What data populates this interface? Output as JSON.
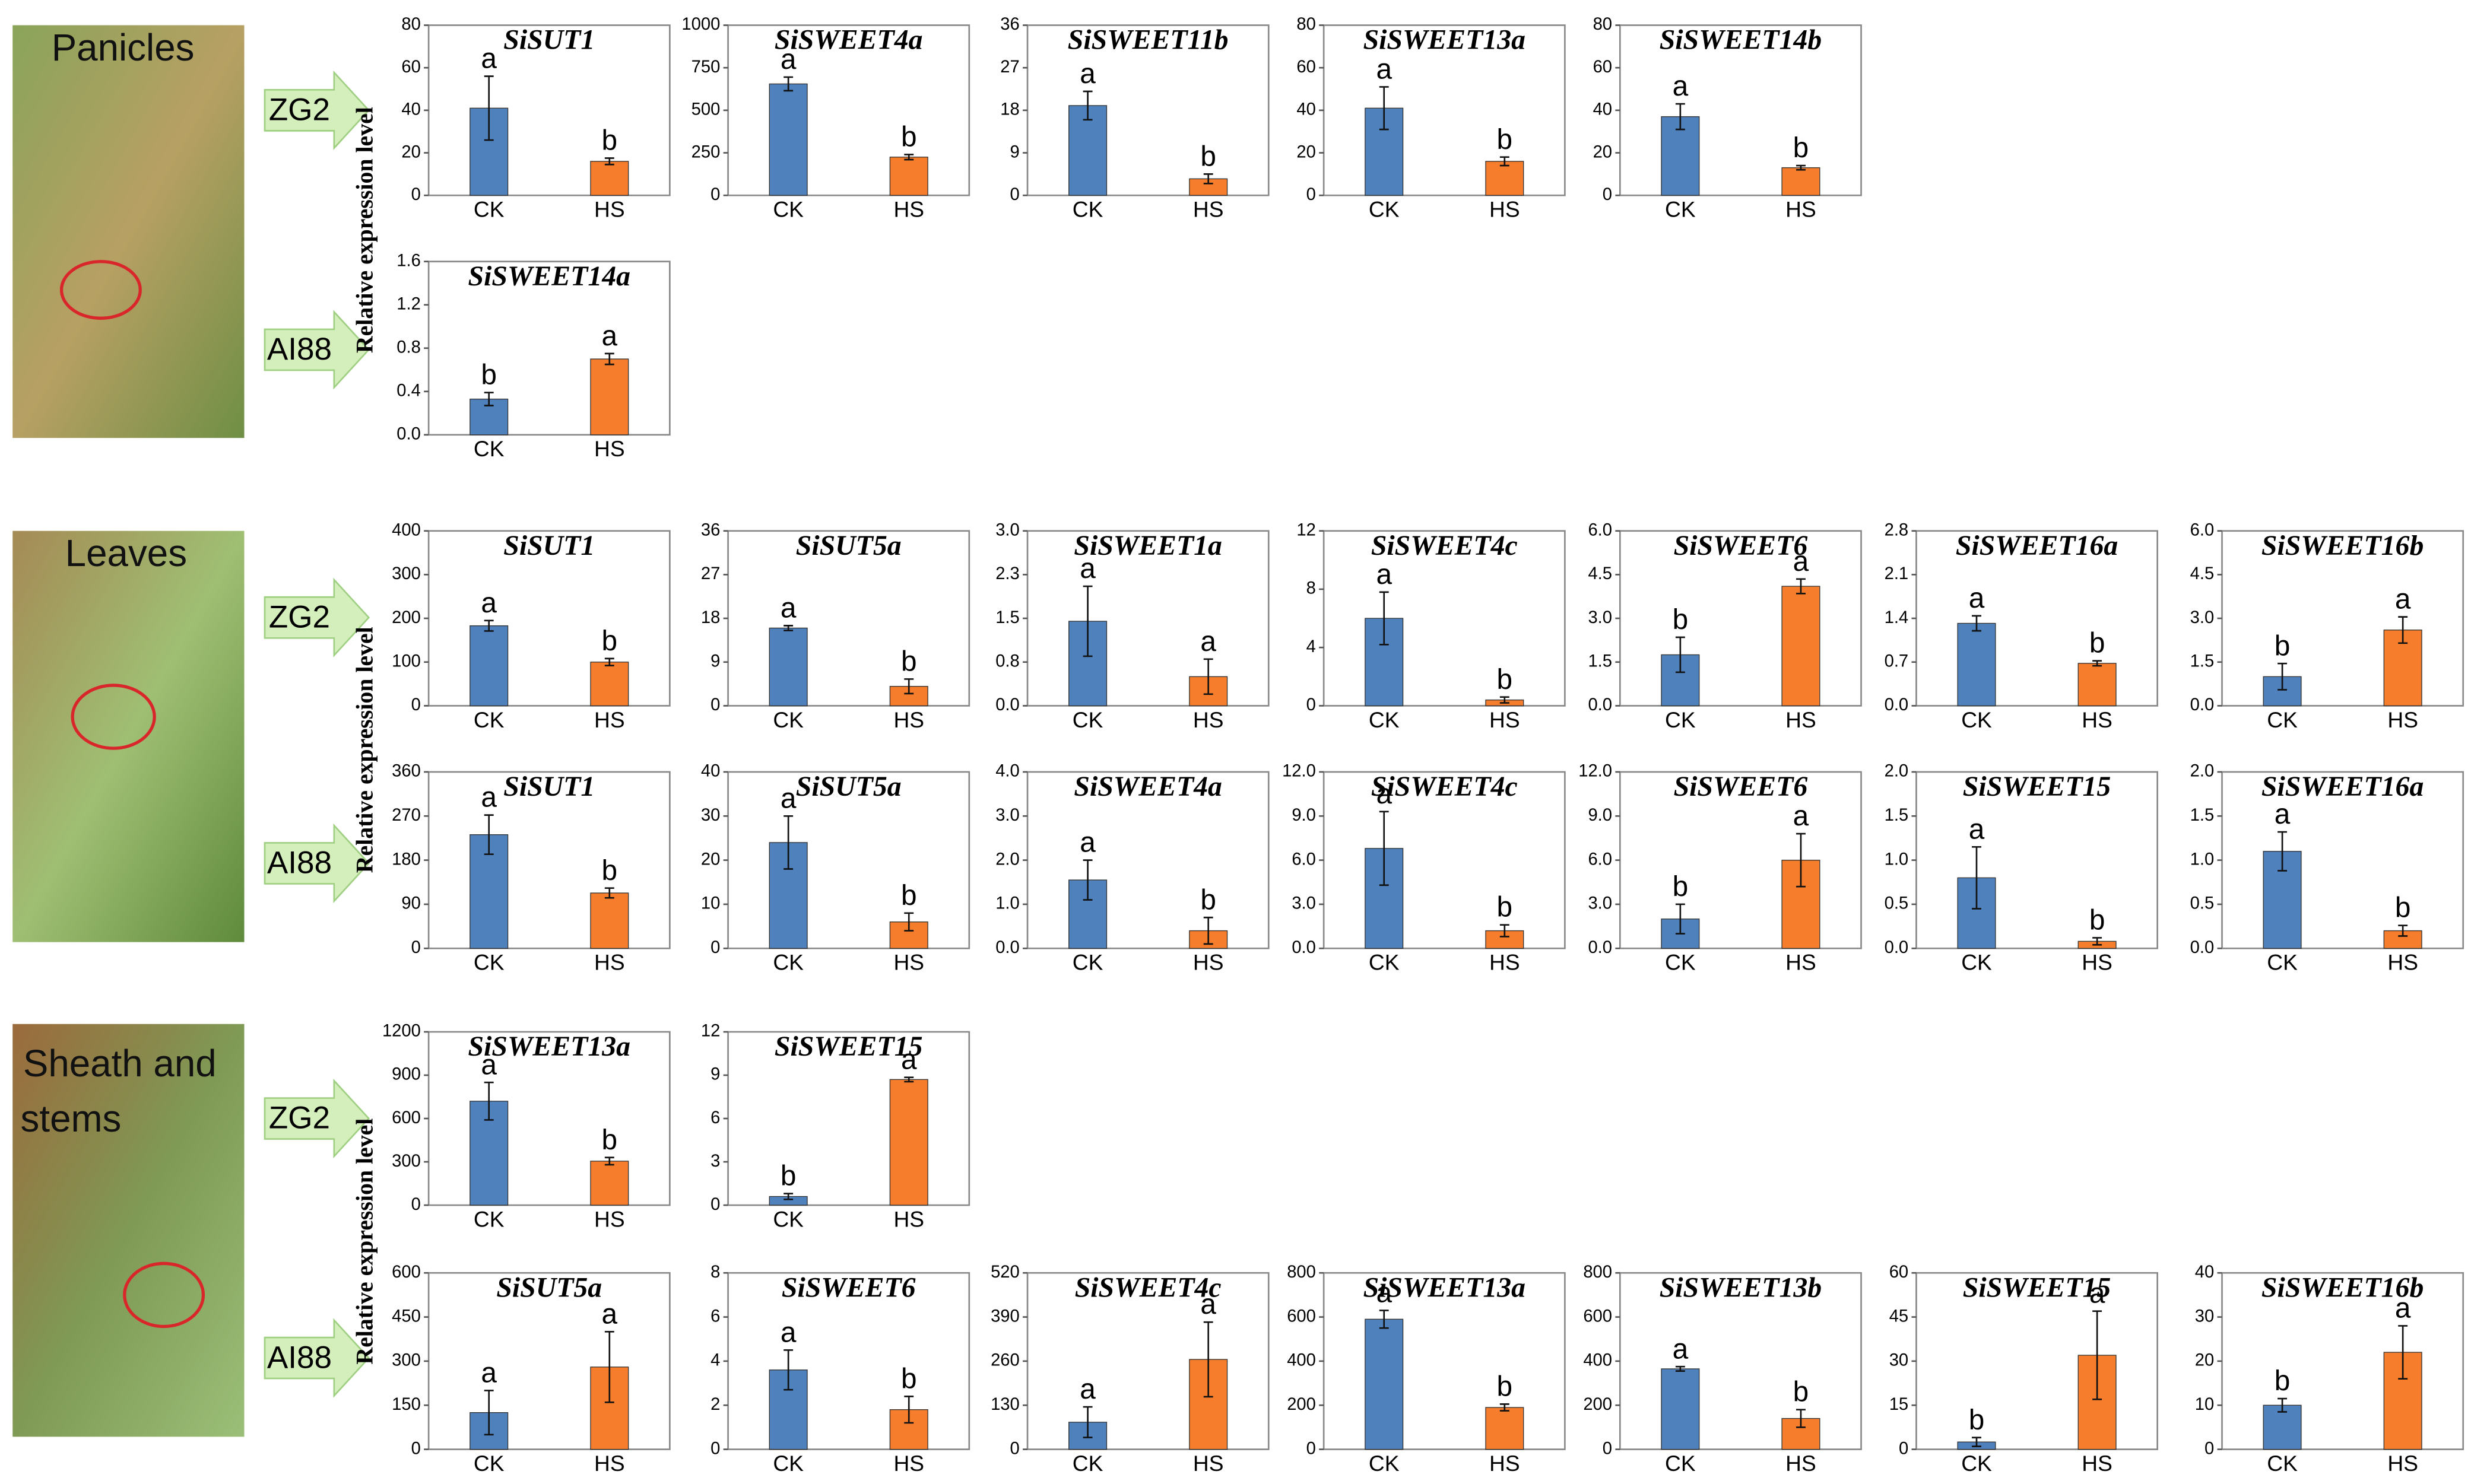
{
  "y_axis_label": "Relative expression level",
  "sections": [
    {
      "label_lines": [
        "Panicles"
      ],
      "genotypes": [
        "ZG2",
        "AI88"
      ]
    },
    {
      "label_lines": [
        "Leaves"
      ],
      "genotypes": [
        "ZG2",
        "AI88"
      ]
    },
    {
      "label_lines": [
        "Sheath and",
        "stems"
      ],
      "genotypes": [
        "ZG2",
        "AI88"
      ]
    }
  ],
  "chart_data": [
    {
      "type": "bar",
      "title": "SiSUT1",
      "categories": [
        "CK",
        "HS"
      ],
      "values": [
        41,
        16
      ],
      "errors": [
        15,
        1.5
      ],
      "letters": [
        "a",
        "b"
      ],
      "colors": [
        "#4f81bd",
        "#f57d2c"
      ],
      "ylim": [
        0,
        80
      ],
      "yticks": [
        0,
        20,
        40,
        60,
        80
      ]
    },
    {
      "type": "bar",
      "title": "SiSWEET4a",
      "categories": [
        "CK",
        "HS"
      ],
      "values": [
        655,
        225
      ],
      "errors": [
        40,
        15
      ],
      "letters": [
        "a",
        "b"
      ],
      "colors": [
        "#4f81bd",
        "#f57d2c"
      ],
      "ylim": [
        0,
        1000
      ],
      "yticks": [
        0,
        250,
        500,
        750,
        1000
      ]
    },
    {
      "type": "bar",
      "title": "SiSWEET11b",
      "categories": [
        "CK",
        "HS"
      ],
      "values": [
        19,
        3.5
      ],
      "errors": [
        3,
        1
      ],
      "letters": [
        "a",
        "b"
      ],
      "colors": [
        "#4f81bd",
        "#f57d2c"
      ],
      "ylim": [
        0,
        36
      ],
      "yticks": [
        0,
        9,
        18,
        27,
        36
      ]
    },
    {
      "type": "bar",
      "title": "SiSWEET13a",
      "categories": [
        "CK",
        "HS"
      ],
      "values": [
        41,
        16
      ],
      "errors": [
        10,
        2
      ],
      "letters": [
        "a",
        "b"
      ],
      "colors": [
        "#4f81bd",
        "#f57d2c"
      ],
      "ylim": [
        0,
        80
      ],
      "yticks": [
        0,
        20,
        40,
        60,
        80
      ]
    },
    {
      "type": "bar",
      "title": "SiSWEET14b",
      "categories": [
        "CK",
        "HS"
      ],
      "values": [
        37,
        13
      ],
      "errors": [
        6,
        1
      ],
      "letters": [
        "a",
        "b"
      ],
      "colors": [
        "#4f81bd",
        "#f57d2c"
      ],
      "ylim": [
        0,
        80
      ],
      "yticks": [
        0,
        20,
        40,
        60,
        80
      ]
    },
    {
      "type": "bar",
      "title": "SiSWEET14a",
      "categories": [
        "CK",
        "HS"
      ],
      "values": [
        0.33,
        0.7
      ],
      "errors": [
        0.06,
        0.05
      ],
      "letters": [
        "b",
        "a"
      ],
      "colors": [
        "#4f81bd",
        "#f57d2c"
      ],
      "ylim": [
        0,
        1.6
      ],
      "yticks": [
        {
          "value": 0,
          "label": "0.0"
        },
        0.4,
        0.8,
        1.2,
        1.6
      ]
    },
    {
      "type": "bar",
      "title": "SiSUT1",
      "categories": [
        "CK",
        "HS"
      ],
      "values": [
        183,
        100
      ],
      "errors": [
        12,
        8
      ],
      "letters": [
        "a",
        "b"
      ],
      "colors": [
        "#4f81bd",
        "#f57d2c"
      ],
      "ylim": [
        0,
        400
      ],
      "yticks": [
        0,
        100,
        200,
        300,
        400
      ]
    },
    {
      "type": "bar",
      "title": "SiSUT5a",
      "categories": [
        "CK",
        "HS"
      ],
      "values": [
        16,
        4
      ],
      "errors": [
        0.5,
        1.5
      ],
      "letters": [
        "a",
        "b"
      ],
      "colors": [
        "#4f81bd",
        "#f57d2c"
      ],
      "ylim": [
        0,
        36
      ],
      "yticks": [
        0,
        9,
        18,
        27,
        36
      ]
    },
    {
      "type": "bar",
      "title": "SiSWEET1a",
      "categories": [
        "CK",
        "HS"
      ],
      "values": [
        1.45,
        0.5
      ],
      "errors": [
        0.6,
        0.3
      ],
      "letters": [
        "a",
        "a"
      ],
      "colors": [
        "#4f81bd",
        "#f57d2c"
      ],
      "ylim": [
        0,
        3
      ],
      "yticks": [
        {
          "value": 0,
          "label": "0.0"
        },
        {
          "value": 0.75,
          "label": "0.8"
        },
        1.5,
        {
          "value": 2.25,
          "label": "2.3"
        },
        {
          "value": 3,
          "label": "3.0"
        }
      ]
    },
    {
      "type": "bar",
      "title": "SiSWEET4c",
      "categories": [
        "CK",
        "HS"
      ],
      "values": [
        6,
        0.4
      ],
      "errors": [
        1.8,
        0.2
      ],
      "letters": [
        "a",
        "b"
      ],
      "colors": [
        "#4f81bd",
        "#f57d2c"
      ],
      "ylim": [
        0,
        12
      ],
      "yticks": [
        0,
        4,
        8,
        12
      ]
    },
    {
      "type": "bar",
      "title": "SiSWEET6",
      "categories": [
        "CK",
        "HS"
      ],
      "values": [
        1.75,
        4.1
      ],
      "errors": [
        0.6,
        0.25
      ],
      "letters": [
        "b",
        "a"
      ],
      "colors": [
        "#4f81bd",
        "#f57d2c"
      ],
      "ylim": [
        0,
        6
      ],
      "yticks": [
        {
          "value": 0,
          "label": "0.0"
        },
        1.5,
        {
          "value": 3,
          "label": "3.0"
        },
        4.5,
        {
          "value": 6,
          "label": "6.0"
        }
      ]
    },
    {
      "type": "bar",
      "title": "SiSWEET16a",
      "categories": [
        "CK",
        "HS"
      ],
      "values": [
        1.32,
        0.68
      ],
      "errors": [
        0.12,
        0.04
      ],
      "letters": [
        "a",
        "b"
      ],
      "colors": [
        "#4f81bd",
        "#f57d2c"
      ],
      "ylim": [
        0,
        2.8
      ],
      "yticks": [
        {
          "value": 0,
          "label": "0.0"
        },
        0.7,
        1.4,
        2.1,
        2.8
      ]
    },
    {
      "type": "bar",
      "title": "SiSWEET16b",
      "categories": [
        "CK",
        "HS"
      ],
      "values": [
        1.0,
        2.6
      ],
      "errors": [
        0.45,
        0.45
      ],
      "letters": [
        "b",
        "a"
      ],
      "colors": [
        "#4f81bd",
        "#f57d2c"
      ],
      "ylim": [
        0,
        6
      ],
      "yticks": [
        {
          "value": 0,
          "label": "0.0"
        },
        1.5,
        {
          "value": 3,
          "label": "3.0"
        },
        4.5,
        {
          "value": 6,
          "label": "6.0"
        }
      ]
    },
    {
      "type": "bar",
      "title": "SiSUT1",
      "categories": [
        "CK",
        "HS"
      ],
      "values": [
        232,
        113
      ],
      "errors": [
        40,
        10
      ],
      "letters": [
        "a",
        "b"
      ],
      "colors": [
        "#4f81bd",
        "#f57d2c"
      ],
      "ylim": [
        0,
        360
      ],
      "yticks": [
        0,
        90,
        180,
        270,
        360
      ]
    },
    {
      "type": "bar",
      "title": "SiSUT5a",
      "categories": [
        "CK",
        "HS"
      ],
      "values": [
        24,
        6
      ],
      "errors": [
        6,
        2
      ],
      "letters": [
        "a",
        "b"
      ],
      "colors": [
        "#4f81bd",
        "#f57d2c"
      ],
      "ylim": [
        0,
        40
      ],
      "yticks": [
        0,
        10,
        20,
        30,
        40
      ]
    },
    {
      "type": "bar",
      "title": "SiSWEET4a",
      "categories": [
        "CK",
        "HS"
      ],
      "values": [
        1.55,
        0.4
      ],
      "errors": [
        0.45,
        0.3
      ],
      "letters": [
        "a",
        "b"
      ],
      "colors": [
        "#4f81bd",
        "#f57d2c"
      ],
      "ylim": [
        0,
        4
      ],
      "yticks": [
        {
          "value": 0,
          "label": "0.0"
        },
        {
          "value": 1,
          "label": "1.0"
        },
        {
          "value": 2,
          "label": "2.0"
        },
        {
          "value": 3,
          "label": "3.0"
        },
        {
          "value": 4,
          "label": "4.0"
        }
      ]
    },
    {
      "type": "bar",
      "title": "SiSWEET4c",
      "categories": [
        "CK",
        "HS"
      ],
      "values": [
        6.8,
        1.2
      ],
      "errors": [
        2.5,
        0.4
      ],
      "letters": [
        "a",
        "b"
      ],
      "colors": [
        "#4f81bd",
        "#f57d2c"
      ],
      "ylim": [
        0,
        12
      ],
      "yticks": [
        {
          "value": 0,
          "label": "0.0"
        },
        {
          "value": 3,
          "label": "3.0"
        },
        {
          "value": 6,
          "label": "6.0"
        },
        {
          "value": 9,
          "label": "9.0"
        },
        {
          "value": 12,
          "label": "12.0"
        }
      ]
    },
    {
      "type": "bar",
      "title": "SiSWEET6",
      "categories": [
        "CK",
        "HS"
      ],
      "values": [
        2.0,
        6.0
      ],
      "errors": [
        1.0,
        1.8
      ],
      "letters": [
        "b",
        "a"
      ],
      "colors": [
        "#4f81bd",
        "#f57d2c"
      ],
      "ylim": [
        0,
        12
      ],
      "yticks": [
        {
          "value": 0,
          "label": "0.0"
        },
        {
          "value": 3,
          "label": "3.0"
        },
        {
          "value": 6,
          "label": "6.0"
        },
        {
          "value": 9,
          "label": "9.0"
        },
        {
          "value": 12,
          "label": "12.0"
        }
      ]
    },
    {
      "type": "bar",
      "title": "SiSWEET15",
      "categories": [
        "CK",
        "HS"
      ],
      "values": [
        0.8,
        0.08
      ],
      "errors": [
        0.35,
        0.04
      ],
      "letters": [
        "a",
        "b"
      ],
      "colors": [
        "#4f81bd",
        "#f57d2c"
      ],
      "ylim": [
        0,
        2
      ],
      "yticks": [
        {
          "value": 0,
          "label": "0.0"
        },
        0.5,
        {
          "value": 1,
          "label": "1.0"
        },
        1.5,
        {
          "value": 2,
          "label": "2.0"
        }
      ]
    },
    {
      "type": "bar",
      "title": "SiSWEET16a",
      "categories": [
        "CK",
        "HS"
      ],
      "values": [
        1.1,
        0.2
      ],
      "errors": [
        0.22,
        0.06
      ],
      "letters": [
        "a",
        "b"
      ],
      "colors": [
        "#4f81bd",
        "#f57d2c"
      ],
      "ylim": [
        0,
        2
      ],
      "yticks": [
        {
          "value": 0,
          "label": "0.0"
        },
        0.5,
        {
          "value": 1,
          "label": "1.0"
        },
        1.5,
        {
          "value": 2,
          "label": "2.0"
        }
      ]
    },
    {
      "type": "bar",
      "title": "SiSWEET13a",
      "categories": [
        "CK",
        "HS"
      ],
      "values": [
        720,
        305
      ],
      "errors": [
        130,
        25
      ],
      "letters": [
        "a",
        "b"
      ],
      "colors": [
        "#4f81bd",
        "#f57d2c"
      ],
      "ylim": [
        0,
        1200
      ],
      "yticks": [
        0,
        300,
        600,
        900,
        1200
      ]
    },
    {
      "type": "bar",
      "title": "SiSWEET15",
      "categories": [
        "CK",
        "HS"
      ],
      "values": [
        0.6,
        8.7
      ],
      "errors": [
        0.2,
        0.15
      ],
      "letters": [
        "b",
        "a"
      ],
      "colors": [
        "#4f81bd",
        "#f57d2c"
      ],
      "ylim": [
        0,
        12
      ],
      "yticks": [
        0,
        3,
        6,
        9,
        12
      ]
    },
    {
      "type": "bar",
      "title": "SiSUT5a",
      "categories": [
        "CK",
        "HS"
      ],
      "values": [
        125,
        280
      ],
      "errors": [
        75,
        120
      ],
      "letters": [
        "a",
        "a"
      ],
      "colors": [
        "#4f81bd",
        "#f57d2c"
      ],
      "ylim": [
        0,
        600
      ],
      "yticks": [
        0,
        150,
        300,
        450,
        600
      ]
    },
    {
      "type": "bar",
      "title": "SiSWEET6",
      "categories": [
        "CK",
        "HS"
      ],
      "values": [
        3.6,
        1.8
      ],
      "errors": [
        0.9,
        0.6
      ],
      "letters": [
        "a",
        "b"
      ],
      "colors": [
        "#4f81bd",
        "#f57d2c"
      ],
      "ylim": [
        0,
        8
      ],
      "yticks": [
        0,
        2,
        4,
        6,
        8
      ]
    },
    {
      "type": "bar",
      "title": "SiSWEET4c",
      "categories": [
        "CK",
        "HS"
      ],
      "values": [
        80,
        265
      ],
      "errors": [
        45,
        110
      ],
      "letters": [
        "a",
        "a"
      ],
      "colors": [
        "#4f81bd",
        "#f57d2c"
      ],
      "ylim": [
        0,
        520
      ],
      "yticks": [
        0,
        130,
        260,
        390,
        520
      ]
    },
    {
      "type": "bar",
      "title": "SiSWEET13a",
      "categories": [
        "CK",
        "HS"
      ],
      "values": [
        590,
        190
      ],
      "errors": [
        40,
        15
      ],
      "letters": [
        "a",
        "b"
      ],
      "colors": [
        "#4f81bd",
        "#f57d2c"
      ],
      "ylim": [
        0,
        800
      ],
      "yticks": [
        0,
        200,
        400,
        600,
        800
      ]
    },
    {
      "type": "bar",
      "title": "SiSWEET13b",
      "categories": [
        "CK",
        "HS"
      ],
      "values": [
        365,
        140
      ],
      "errors": [
        10,
        40
      ],
      "letters": [
        "a",
        "b"
      ],
      "colors": [
        "#4f81bd",
        "#f57d2c"
      ],
      "ylim": [
        0,
        800
      ],
      "yticks": [
        0,
        200,
        400,
        600,
        800
      ]
    },
    {
      "type": "bar",
      "title": "SiSWEET15",
      "categories": [
        "CK",
        "HS"
      ],
      "values": [
        2.5,
        32
      ],
      "errors": [
        1.5,
        15
      ],
      "letters": [
        "b",
        "a"
      ],
      "colors": [
        "#4f81bd",
        "#f57d2c"
      ],
      "ylim": [
        0,
        60
      ],
      "yticks": [
        0,
        15,
        30,
        45,
        60
      ]
    },
    {
      "type": "bar",
      "title": "SiSWEET16b",
      "categories": [
        "CK",
        "HS"
      ],
      "values": [
        10,
        22
      ],
      "errors": [
        1.5,
        6
      ],
      "letters": [
        "b",
        "a"
      ],
      "colors": [
        "#4f81bd",
        "#f57d2c"
      ],
      "ylim": [
        0,
        40
      ],
      "yticks": [
        0,
        10,
        20,
        30,
        40
      ]
    }
  ]
}
